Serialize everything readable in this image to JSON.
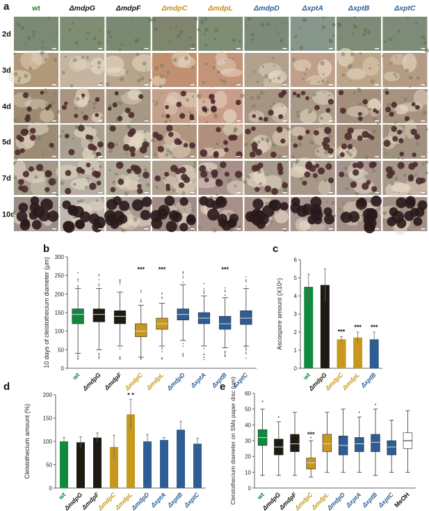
{
  "figure": {
    "panel_letters": [
      "a",
      "b",
      "c",
      "d",
      "e"
    ]
  },
  "panel_a": {
    "strains": [
      "wt",
      "ΔmdpG",
      "ΔmdpF",
      "ΔmdpC",
      "ΔmdpL",
      "ΔmdpD",
      "ΔxptA",
      "ΔxptB",
      "ΔxptC"
    ],
    "strain_colors": [
      "#1a7a2e",
      "#111111",
      "#111111",
      "#c8901a",
      "#c8901a",
      "#2e5f96",
      "#2e5f96",
      "#2e5f96",
      "#2e5f96"
    ],
    "days": [
      "2d",
      "3d",
      "4d",
      "5d",
      "7d",
      "10d"
    ]
  },
  "chart_data": [
    {
      "panel": "b",
      "type": "box",
      "categories": [
        "wt",
        "ΔmdpG",
        "ΔmdpF",
        "ΔmdpC",
        "ΔmdpL",
        "ΔmdpD",
        "ΔxptA",
        "ΔxptB",
        "ΔxptC"
      ],
      "colors": [
        "#0f8a3c",
        "#1e1a12",
        "#1e1a12",
        "#c8971e",
        "#c8971e",
        "#2d5d94",
        "#2d5d94",
        "#2d5d94",
        "#2d5d94"
      ],
      "boxes": [
        {
          "whisker_low": 40,
          "q1": 120,
          "median": 145,
          "q3": 160,
          "whisker_high": 215
        },
        {
          "whisker_low": 50,
          "q1": 125,
          "median": 145,
          "q3": 160,
          "whisker_high": 215
        },
        {
          "whisker_low": 60,
          "q1": 120,
          "median": 140,
          "q3": 155,
          "whisker_high": 205
        },
        {
          "whisker_low": 30,
          "q1": 85,
          "median": 100,
          "q3": 120,
          "whisker_high": 170
        },
        {
          "whisker_low": 60,
          "q1": 105,
          "median": 120,
          "q3": 135,
          "whisker_high": 175
        },
        {
          "whisker_low": 75,
          "q1": 130,
          "median": 145,
          "q3": 160,
          "whisker_high": 225
        },
        {
          "whisker_low": 60,
          "q1": 120,
          "median": 135,
          "q3": 150,
          "whisker_high": 195
        },
        {
          "whisker_low": 55,
          "q1": 105,
          "median": 120,
          "q3": 140,
          "whisker_high": 190
        },
        {
          "whisker_low": 60,
          "q1": 118,
          "median": 135,
          "q3": 155,
          "whisker_high": 215
        }
      ],
      "significance": [
        "",
        "",
        "",
        "***",
        "***",
        "",
        "",
        "***",
        ""
      ],
      "ylabel": "10 days of cleistothecium diameter (μm)",
      "ylim": [
        0,
        300
      ],
      "yticks": [
        0,
        50,
        100,
        150,
        200,
        250,
        300
      ]
    },
    {
      "panel": "c",
      "type": "bar",
      "categories": [
        "wt",
        "ΔmdpG",
        "ΔmdpC",
        "ΔmdpL",
        "ΔxptB"
      ],
      "colors": [
        "#0f8a3c",
        "#1e1a12",
        "#c8971e",
        "#c8971e",
        "#2d5d94"
      ],
      "values": [
        4.5,
        4.6,
        1.6,
        1.7,
        1.6
      ],
      "errors": [
        0.7,
        0.9,
        0.15,
        0.3,
        0.4
      ],
      "significance": [
        "",
        "",
        "***",
        "***",
        "***"
      ],
      "ylabel": "Ascospore amount (X10⁶)",
      "ylim": [
        0,
        6
      ],
      "yticks": [
        0,
        1,
        2,
        3,
        4,
        5,
        6
      ]
    },
    {
      "panel": "d",
      "type": "bar",
      "categories": [
        "wt",
        "ΔmdpG",
        "ΔmdpF",
        "ΔmdpC",
        "ΔmdpL",
        "ΔmdpD",
        "ΔxptA",
        "ΔxptB",
        "ΔxptC"
      ],
      "colors": [
        "#0f8a3c",
        "#1e1a12",
        "#1e1a12",
        "#c8971e",
        "#c8971e",
        "#2d5d94",
        "#2d5d94",
        "#2d5d94",
        "#2d5d94"
      ],
      "values": [
        100,
        98,
        108,
        88,
        158,
        100,
        103,
        125,
        95
      ],
      "errors": [
        8,
        12,
        10,
        25,
        32,
        15,
        5,
        18,
        12
      ],
      "significance": [
        "",
        "",
        "",
        "",
        "* *",
        "",
        "",
        "",
        ""
      ],
      "ylabel": "Cleistothecium amount (%)",
      "ylim": [
        0,
        200
      ],
      "yticks": [
        0,
        50,
        100,
        150,
        200
      ]
    },
    {
      "panel": "e",
      "type": "box",
      "categories": [
        "wt",
        "ΔmdpG",
        "ΔmdpF",
        "ΔmdpC",
        "ΔmdpL",
        "ΔmdpD",
        "ΔxptA",
        "ΔxptB",
        "ΔxptC",
        "MeOH"
      ],
      "colors": [
        "#0f8a3c",
        "#1e1a12",
        "#1e1a12",
        "#c8971e",
        "#c8971e",
        "#2d5d94",
        "#2d5d94",
        "#2d5d94",
        "#2d5d94",
        "#ffffff"
      ],
      "label_colors": [
        "#0f8a3c",
        "#111111",
        "#111111",
        "#c8971e",
        "#c8971e",
        "#2d5d94",
        "#2d5d94",
        "#2d5d94",
        "#2d5d94",
        "#111111"
      ],
      "boxes": [
        {
          "whisker_low": 8,
          "q1": 27,
          "median": 32,
          "q3": 37,
          "whisker_high": 50,
          "outlier": 55
        },
        {
          "whisker_low": 8,
          "q1": 21,
          "median": 26,
          "q3": 31,
          "whisker_high": 42,
          "outlier": 45
        },
        {
          "whisker_low": 8,
          "q1": 23,
          "median": 28,
          "q3": 34,
          "whisker_high": 48
        },
        {
          "whisker_low": 7,
          "q1": 12,
          "median": 16,
          "q3": 19,
          "whisker_high": 30,
          "outlier": 32
        },
        {
          "whisker_low": 10,
          "q1": 23,
          "median": 28,
          "q3": 34,
          "whisker_high": 48
        },
        {
          "whisker_low": 10,
          "q1": 21,
          "median": 27,
          "q3": 33,
          "whisker_high": 50
        },
        {
          "whisker_low": 10,
          "q1": 23,
          "median": 28,
          "q3": 32,
          "whisker_high": 45,
          "outlier": 48
        },
        {
          "whisker_low": 8,
          "q1": 23,
          "median": 29,
          "q3": 34,
          "whisker_high": 50,
          "outlier": 53
        },
        {
          "whisker_low": 10,
          "q1": 21,
          "median": 26,
          "q3": 30,
          "whisker_high": 43
        },
        {
          "whisker_low": 10,
          "q1": 25,
          "median": 30,
          "q3": 35,
          "whisker_high": 49
        }
      ],
      "significance": [
        "",
        "",
        "",
        "***",
        "",
        "",
        "",
        "",
        "",
        ""
      ],
      "ylabel": "Cleistothecium diameter on SMs paper disc (μm)",
      "ylim": [
        0,
        60
      ],
      "yticks": [
        0,
        10,
        20,
        30,
        40,
        50,
        60
      ]
    }
  ]
}
